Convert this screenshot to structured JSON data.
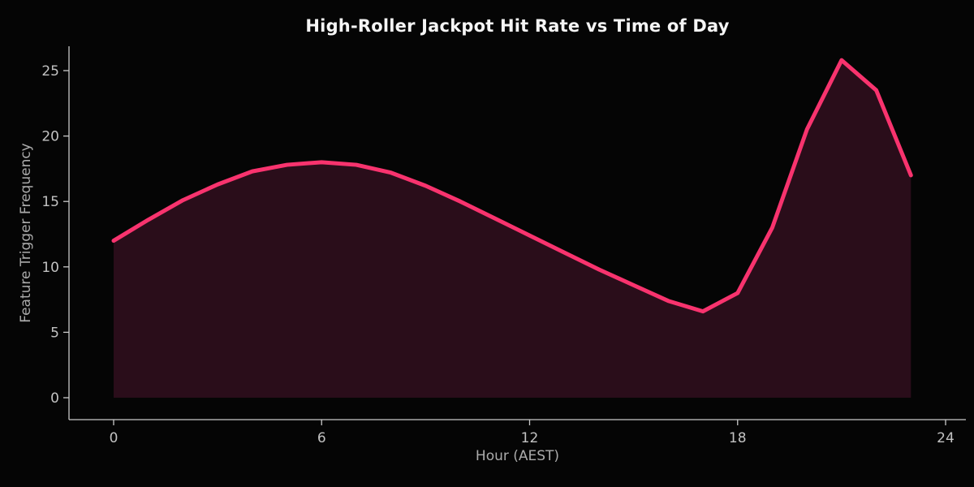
{
  "chart_data": {
    "type": "area",
    "title": "High-Roller Jackpot Hit Rate vs Time of Day",
    "xlabel": "Hour (AEST)",
    "ylabel": "Feature Trigger Frequency",
    "x": [
      0,
      1,
      2,
      3,
      4,
      5,
      6,
      7,
      8,
      9,
      10,
      11,
      12,
      13,
      14,
      15,
      16,
      17,
      18,
      19,
      20,
      21,
      22,
      23
    ],
    "values": [
      12.0,
      13.6,
      15.1,
      16.3,
      17.3,
      17.8,
      18.0,
      17.8,
      17.2,
      16.2,
      15.0,
      13.7,
      12.4,
      11.1,
      9.8,
      8.6,
      7.4,
      6.6,
      8.0,
      13.0,
      20.5,
      25.8,
      23.5,
      17.0
    ],
    "xticks": [
      0,
      6,
      12,
      18,
      24
    ],
    "yticks": [
      0,
      5,
      10,
      15,
      20,
      25
    ],
    "xlim": [
      -1.3,
      24.6
    ],
    "ylim": [
      0,
      26.9
    ],
    "grid": false,
    "legend": "none",
    "line_color": "#f8336e",
    "fill_color": "#2a0d1a",
    "axis_color": "#c9c9c9",
    "tick_label_color": "#c2c2c2",
    "background_color": "#050505"
  }
}
